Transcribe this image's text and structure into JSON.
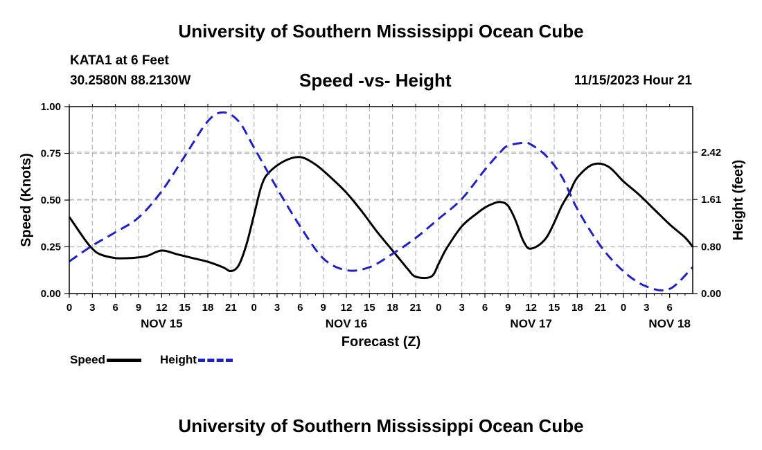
{
  "header": {
    "title": "University of Southern Mississippi Ocean Cube",
    "station": "KATA1 at 6 Feet",
    "coords": "30.2580N  88.2130W",
    "chart_title": "Speed -vs- Height",
    "datetime": "11/15/2023 Hour 21"
  },
  "footer": {
    "title": "University of Southern Mississippi Ocean Cube"
  },
  "legend": {
    "speed_label": "Speed",
    "height_label": "Height"
  },
  "colors": {
    "speed": "#000000",
    "height": "#1e20c8",
    "grid": "#bdbdbd"
  },
  "chart_data": {
    "type": "line",
    "title": "Speed -vs- Height",
    "xlabel": "Forecast (Z)",
    "ylabel": "Speed (Knots)",
    "y2label": "Height (feet)",
    "xlim": [
      0,
      81
    ],
    "ylim": [
      0,
      1.0
    ],
    "y2lim": [
      0,
      3.2
    ],
    "x_tick_labels": [
      "0",
      "3",
      "6",
      "9",
      "12",
      "15",
      "18",
      "21",
      "0",
      "3",
      "6",
      "9",
      "12",
      "15",
      "18",
      "21",
      "0",
      "3",
      "6",
      "9",
      "12",
      "15",
      "18",
      "21",
      "0",
      "3",
      "6"
    ],
    "day_labels": [
      {
        "hour": 12,
        "label": "NOV 15"
      },
      {
        "hour": 36,
        "label": "NOV 16"
      },
      {
        "hour": 60,
        "label": "NOV 17"
      },
      {
        "hour": 78,
        "label": "NOV 18"
      }
    ],
    "y_ticks": [
      0.0,
      0.25,
      0.5,
      0.75,
      1.0
    ],
    "y_tick_labels": [
      "0.00",
      "0.25",
      "0.50",
      "0.75",
      "1.00"
    ],
    "y2_ticks": [
      0.0,
      0.8,
      1.61,
      2.42
    ],
    "y2_tick_labels": [
      "0.00",
      "0.80",
      "1.61",
      "2.42"
    ],
    "series": [
      {
        "name": "Speed",
        "axis": "left",
        "x": [
          0,
          2,
          3,
          4,
          6,
          8,
          10,
          12,
          14,
          16,
          18,
          20,
          21,
          22,
          23,
          24,
          25,
          26,
          28,
          30,
          32,
          34,
          36,
          38,
          40,
          42,
          43,
          44,
          45,
          47,
          48,
          49,
          51,
          53,
          54,
          55,
          56,
          57,
          58,
          59,
          60,
          62,
          64,
          65,
          66,
          68,
          70,
          72,
          74,
          76,
          78,
          80,
          81
        ],
        "values": [
          0.41,
          0.29,
          0.24,
          0.21,
          0.19,
          0.19,
          0.2,
          0.23,
          0.21,
          0.19,
          0.17,
          0.14,
          0.12,
          0.15,
          0.26,
          0.42,
          0.58,
          0.65,
          0.71,
          0.73,
          0.69,
          0.62,
          0.54,
          0.44,
          0.33,
          0.23,
          0.18,
          0.13,
          0.09,
          0.09,
          0.16,
          0.24,
          0.36,
          0.43,
          0.46,
          0.48,
          0.49,
          0.47,
          0.39,
          0.28,
          0.24,
          0.3,
          0.47,
          0.54,
          0.62,
          0.69,
          0.68,
          0.6,
          0.53,
          0.45,
          0.37,
          0.3,
          0.25
        ]
      },
      {
        "name": "Height",
        "axis": "right",
        "x": [
          0,
          3,
          6,
          9,
          12,
          15,
          18,
          20,
          22,
          24,
          27,
          30,
          33,
          36,
          39,
          42,
          45,
          48,
          51,
          54,
          56,
          57,
          59,
          60,
          62,
          64,
          66,
          69,
          72,
          75,
          78,
          81
        ],
        "values": [
          0.55,
          0.82,
          1.05,
          1.3,
          1.75,
          2.35,
          2.95,
          3.1,
          2.95,
          2.5,
          1.8,
          1.15,
          0.6,
          0.4,
          0.45,
          0.68,
          0.95,
          1.28,
          1.62,
          2.12,
          2.42,
          2.53,
          2.58,
          2.55,
          2.35,
          2.0,
          1.45,
          0.82,
          0.38,
          0.12,
          0.08,
          0.45
        ]
      }
    ]
  }
}
